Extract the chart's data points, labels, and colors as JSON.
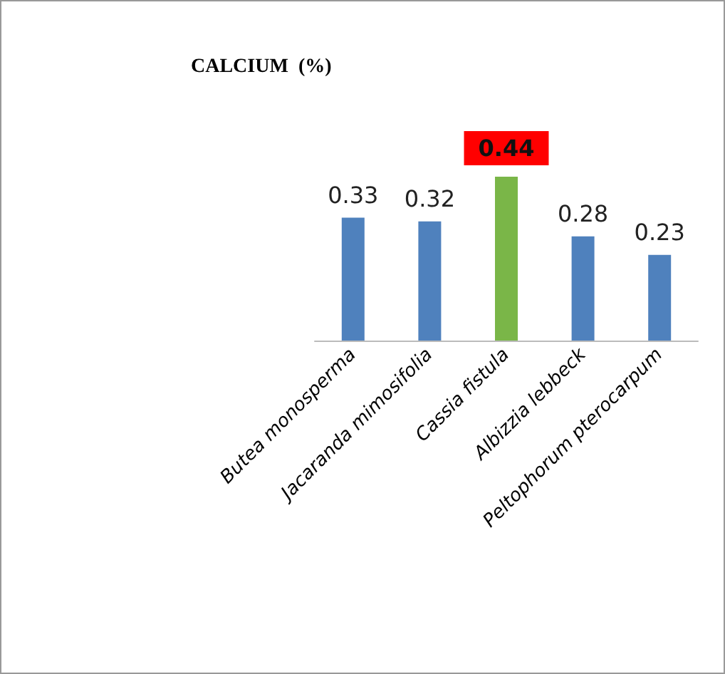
{
  "chart_data": {
    "type": "bar",
    "title": "CALCIUM  (%)",
    "categories": [
      "Butea monosperma",
      "Jacaranda mimosifolia",
      "Cassia fistula",
      "Albizzia lebbeck",
      "Peltophorum pterocarpum"
    ],
    "values": [
      0.33,
      0.32,
      0.44,
      0.28,
      0.23
    ],
    "colors": [
      "#4f81bd",
      "#4f81bd",
      "#7ab648",
      "#4f81bd",
      "#4f81bd"
    ],
    "data_labels": true
  }
}
